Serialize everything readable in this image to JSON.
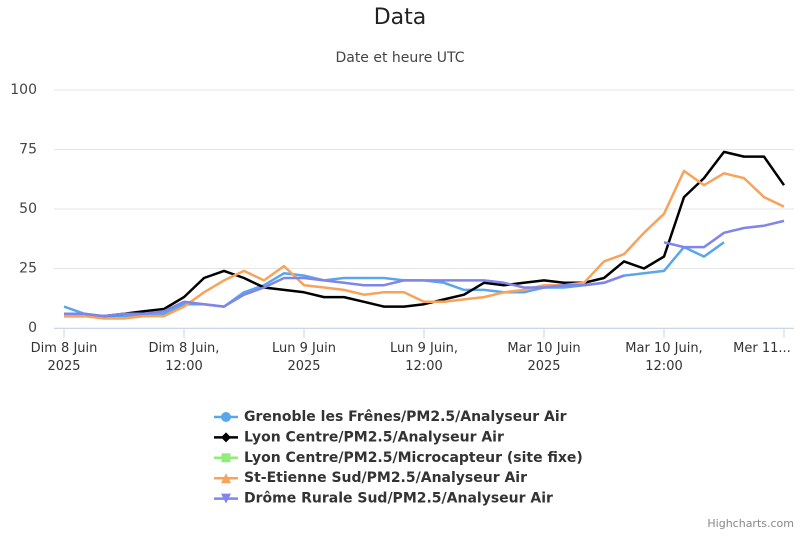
{
  "chart_data": {
    "type": "line",
    "title": "Data",
    "subtitle": "Date et heure UTC",
    "credits": "Highcharts.com",
    "x": [
      "2025-06-08T00:00",
      "2025-06-08T02:00",
      "2025-06-08T04:00",
      "2025-06-08T06:00",
      "2025-06-08T08:00",
      "2025-06-08T10:00",
      "2025-06-08T12:00",
      "2025-06-08T14:00",
      "2025-06-08T16:00",
      "2025-06-08T18:00",
      "2025-06-08T20:00",
      "2025-06-08T22:00",
      "2025-06-09T00:00",
      "2025-06-09T02:00",
      "2025-06-09T04:00",
      "2025-06-09T06:00",
      "2025-06-09T08:00",
      "2025-06-09T10:00",
      "2025-06-09T12:00",
      "2025-06-09T14:00",
      "2025-06-09T16:00",
      "2025-06-09T18:00",
      "2025-06-09T20:00",
      "2025-06-09T22:00",
      "2025-06-10T00:00",
      "2025-06-10T02:00",
      "2025-06-10T04:00",
      "2025-06-10T06:00",
      "2025-06-10T08:00",
      "2025-06-10T10:00",
      "2025-06-10T12:00",
      "2025-06-10T14:00",
      "2025-06-10T16:00",
      "2025-06-10T18:00",
      "2025-06-10T20:00",
      "2025-06-10T22:00",
      "2025-06-11T00:00"
    ],
    "series": [
      {
        "name": "Grenoble les Frênes/PM2.5/Analyseur Air",
        "color": "#5aa6ea",
        "marker": "circle",
        "values": [
          9,
          6,
          5,
          5,
          5,
          6,
          10,
          10,
          9,
          15,
          18,
          23,
          22,
          20,
          21,
          21,
          21,
          20,
          20,
          19,
          16,
          16,
          15,
          15,
          17,
          17,
          18,
          19,
          22,
          23,
          24,
          34,
          30,
          36,
          null,
          null,
          null
        ]
      },
      {
        "name": "Lyon Centre/PM2.5/Analyseur Air",
        "color": "#000000",
        "marker": "diamond",
        "values": [
          5,
          5,
          5,
          6,
          7,
          8,
          13,
          21,
          24,
          21,
          17,
          16,
          15,
          13,
          13,
          11,
          9,
          9,
          10,
          12,
          14,
          19,
          18,
          19,
          20,
          19,
          19,
          21,
          28,
          25,
          30,
          55,
          63,
          74,
          72,
          72,
          60
        ]
      },
      {
        "name": "Lyon Centre/PM2.5/Microcapteur (site fixe)",
        "color": "#90ed7d",
        "marker": "square",
        "values": [
          null,
          null,
          null,
          null,
          null,
          null,
          null,
          null,
          null,
          null,
          null,
          null,
          null,
          null,
          null,
          null,
          null,
          null,
          null,
          null,
          null,
          null,
          null,
          null,
          null,
          null,
          null,
          null,
          null,
          null,
          null,
          null,
          null,
          null,
          null,
          null,
          null
        ]
      },
      {
        "name": "St-Etienne Sud/PM2.5/Analyseur Air",
        "color": "#f7a35c",
        "marker": "triangle",
        "values": [
          5,
          5,
          4,
          4,
          5,
          5,
          9,
          15,
          20,
          24,
          20,
          26,
          18,
          17,
          16,
          14,
          15,
          15,
          11,
          11,
          12,
          13,
          15,
          16,
          18,
          18,
          19,
          28,
          31,
          40,
          48,
          66,
          60,
          65,
          63,
          55,
          51
        ]
      },
      {
        "name": "Drôme Rurale Sud/PM2.5/Analyseur Air",
        "color": "#8085e9",
        "marker": "triangle-down",
        "values": [
          6,
          6,
          5,
          6,
          6,
          7,
          11,
          10,
          9,
          14,
          17,
          21,
          21,
          20,
          19,
          18,
          18,
          20,
          20,
          20,
          20,
          20,
          19,
          17,
          17,
          18,
          18,
          19,
          22,
          null,
          36,
          34,
          34,
          40,
          42,
          43,
          45
        ]
      }
    ],
    "xlim": [
      "2025-06-07T23:00",
      "2025-06-11T01:00"
    ],
    "xticks": [
      {
        "value": "2025-06-08T00:00",
        "label": "Dim 8 Juin 2025"
      },
      {
        "value": "2025-06-08T12:00",
        "label": "Dim 8 Juin, 12:00"
      },
      {
        "value": "2025-06-09T00:00",
        "label": "Lun 9 Juin 2025"
      },
      {
        "value": "2025-06-09T12:00",
        "label": "Lun 9 Juin, 12:00"
      },
      {
        "value": "2025-06-10T00:00",
        "label": "Mar 10 Juin 2025"
      },
      {
        "value": "2025-06-10T12:00",
        "label": "Mar 10 Juin, 12:00"
      },
      {
        "value": "2025-06-11T00:00",
        "label": "Mer 11..."
      }
    ],
    "ylim": [
      0,
      100
    ],
    "yticks": [
      0,
      25,
      50,
      75,
      100
    ],
    "grid": true,
    "legend": "bottom"
  }
}
